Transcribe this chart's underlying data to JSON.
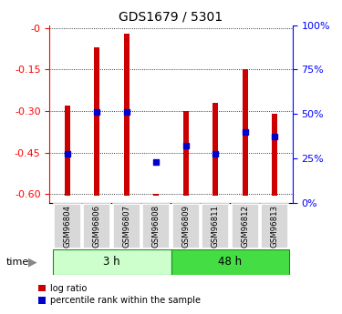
{
  "title": "GDS1679 / 5301",
  "samples": [
    "GSM96804",
    "GSM96806",
    "GSM96807",
    "GSM96808",
    "GSM96809",
    "GSM96811",
    "GSM96812",
    "GSM96813"
  ],
  "log_ratios": [
    -0.28,
    -0.07,
    -0.02,
    -0.6,
    -0.3,
    -0.27,
    -0.15,
    -0.31
  ],
  "percentile_ranks": [
    0.25,
    0.5,
    0.5,
    0.2,
    0.3,
    0.25,
    0.38,
    0.35
  ],
  "bar_color": "#cc0000",
  "blue_color": "#0000cc",
  "ylim_left": [
    -0.63,
    0.01
  ],
  "ylim_right": [
    0,
    100
  ],
  "yticks_left": [
    0,
    -0.15,
    -0.3,
    -0.45,
    -0.6
  ],
  "yticks_right": [
    0,
    25,
    50,
    75,
    100
  ],
  "groups": [
    {
      "label": "3 h",
      "indices": [
        0,
        1,
        2,
        3
      ],
      "color": "#ccffcc"
    },
    {
      "label": "48 h",
      "indices": [
        4,
        5,
        6,
        7
      ],
      "color": "#44dd44"
    }
  ],
  "time_label": "time",
  "bar_bottom": -0.605
}
